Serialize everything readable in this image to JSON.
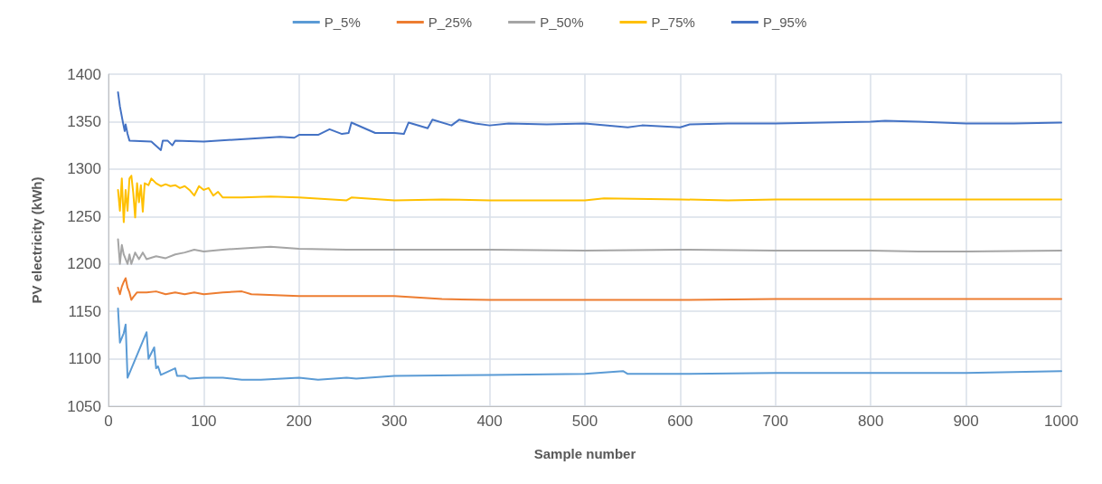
{
  "chart_data": {
    "type": "line",
    "xlabel": "Sample number",
    "ylabel": "PV electricity (kWh)",
    "xlim": [
      0,
      1000
    ],
    "xticks": [
      0,
      100,
      200,
      300,
      400,
      500,
      600,
      700,
      800,
      900,
      1000
    ],
    "ylim": [
      1050,
      1400
    ],
    "yticks": [
      1050,
      1100,
      1150,
      1200,
      1250,
      1300,
      1350,
      1400
    ],
    "grid": true,
    "legend": "top",
    "marker": "none",
    "line_style": "solid",
    "series": [
      {
        "name": "P_5%",
        "color": "#5b9bd5",
        "x": [
          10,
          12,
          16,
          18,
          20,
          40,
          42,
          48,
          50,
          52,
          55,
          70,
          72,
          80,
          85,
          100,
          120,
          140,
          160,
          200,
          220,
          250,
          260,
          300,
          400,
          500,
          540,
          545,
          600,
          700,
          800,
          900,
          1000
        ],
        "values": [
          1153,
          1117,
          1127,
          1136,
          1080,
          1128,
          1100,
          1112,
          1090,
          1092,
          1083,
          1090,
          1082,
          1082,
          1079,
          1080,
          1080,
          1078,
          1078,
          1080,
          1078,
          1080,
          1079,
          1082,
          1083,
          1084,
          1087,
          1084,
          1084,
          1085,
          1085,
          1085,
          1087
        ]
      },
      {
        "name": "P_25%",
        "color": "#ed7d31",
        "x": [
          10,
          12,
          14,
          16,
          18,
          20,
          22,
          24,
          26,
          30,
          40,
          50,
          60,
          70,
          80,
          90,
          100,
          120,
          140,
          150,
          200,
          250,
          300,
          350,
          400,
          500,
          600,
          700,
          800,
          900,
          1000
        ],
        "values": [
          1175,
          1168,
          1176,
          1181,
          1185,
          1175,
          1170,
          1162,
          1165,
          1170,
          1170,
          1171,
          1168,
          1170,
          1168,
          1170,
          1168,
          1170,
          1171,
          1168,
          1166,
          1166,
          1166,
          1163,
          1162,
          1162,
          1162,
          1163,
          1163,
          1163,
          1163
        ]
      },
      {
        "name": "P_50%",
        "color": "#a5a5a5",
        "x": [
          10,
          12,
          14,
          16,
          18,
          20,
          22,
          24,
          28,
          32,
          36,
          40,
          50,
          60,
          70,
          80,
          90,
          100,
          120,
          150,
          170,
          200,
          250,
          300,
          400,
          500,
          600,
          700,
          800,
          850,
          900,
          1000
        ],
        "values": [
          1226,
          1200,
          1220,
          1210,
          1205,
          1200,
          1210,
          1200,
          1212,
          1205,
          1212,
          1205,
          1208,
          1206,
          1210,
          1212,
          1215,
          1213,
          1215,
          1217,
          1218,
          1216,
          1215,
          1215,
          1215,
          1214,
          1215,
          1214,
          1214,
          1213,
          1213,
          1214
        ]
      },
      {
        "name": "P_75%",
        "color": "#ffc000",
        "x": [
          10,
          12,
          14,
          16,
          18,
          20,
          22,
          24,
          26,
          28,
          30,
          32,
          34,
          36,
          38,
          42,
          45,
          50,
          55,
          60,
          65,
          70,
          75,
          80,
          85,
          90,
          95,
          100,
          105,
          110,
          115,
          120,
          140,
          170,
          200,
          250,
          255,
          300,
          350,
          400,
          450,
          500,
          520,
          600,
          650,
          700,
          800,
          900,
          1000
        ],
        "values": [
          1278,
          1256,
          1290,
          1244,
          1278,
          1256,
          1290,
          1293,
          1275,
          1249,
          1285,
          1265,
          1283,
          1255,
          1285,
          1283,
          1290,
          1285,
          1282,
          1284,
          1282,
          1283,
          1280,
          1282,
          1278,
          1272,
          1282,
          1278,
          1280,
          1272,
          1276,
          1270,
          1270,
          1271,
          1270,
          1267,
          1270,
          1267,
          1268,
          1267,
          1267,
          1267,
          1269,
          1268,
          1267,
          1268,
          1268,
          1268,
          1268
        ]
      },
      {
        "name": "P_95%",
        "color": "#4472c4",
        "x": [
          10,
          12,
          15,
          17,
          18,
          20,
          22,
          45,
          55,
          57,
          62,
          67,
          70,
          100,
          150,
          180,
          195,
          200,
          220,
          232,
          245,
          252,
          255,
          280,
          300,
          310,
          315,
          335,
          340,
          360,
          368,
          385,
          400,
          420,
          460,
          500,
          545,
          560,
          600,
          610,
          650,
          700,
          750,
          800,
          815,
          850,
          900,
          950,
          1000
        ],
        "values": [
          1381,
          1366,
          1350,
          1340,
          1347,
          1337,
          1330,
          1329,
          1320,
          1330,
          1330,
          1325,
          1330,
          1329,
          1332,
          1334,
          1333,
          1336,
          1336,
          1342,
          1337,
          1338,
          1349,
          1338,
          1338,
          1337,
          1349,
          1343,
          1352,
          1346,
          1352,
          1348,
          1346,
          1348,
          1347,
          1348,
          1344,
          1346,
          1344,
          1347,
          1348,
          1348,
          1349,
          1350,
          1351,
          1350,
          1348,
          1348,
          1349
        ]
      }
    ]
  }
}
